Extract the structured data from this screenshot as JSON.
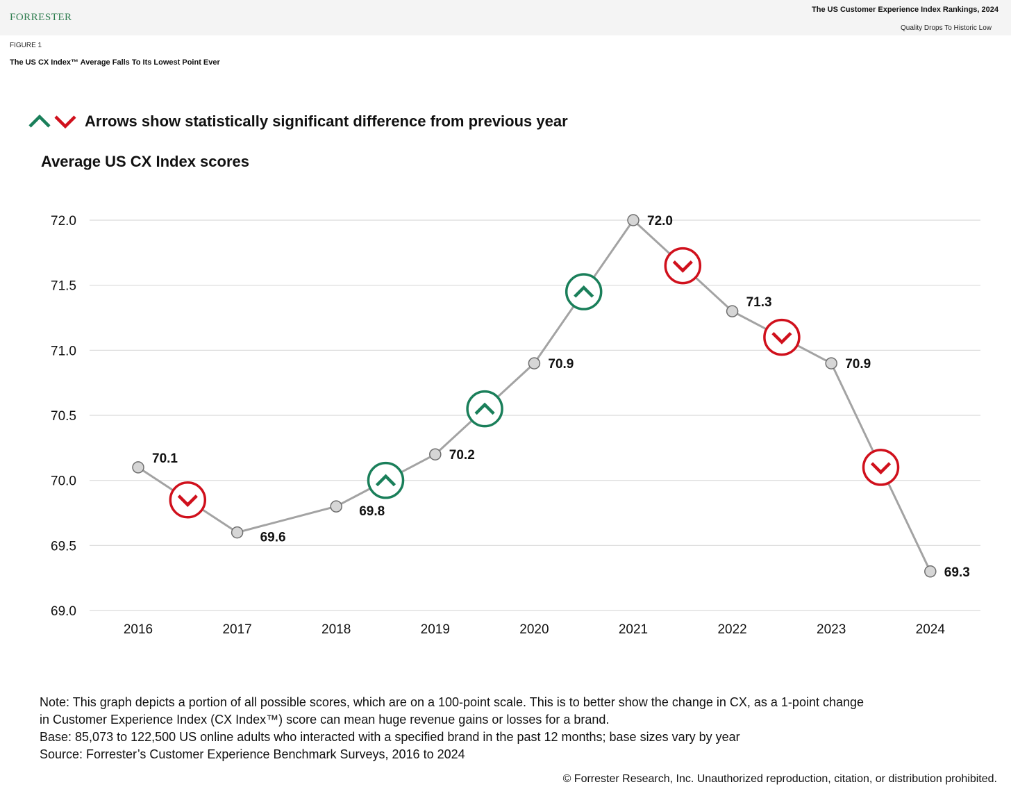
{
  "header": {
    "logo": "FORRESTER",
    "report_title": "The US Customer Experience Index Rankings, 2024",
    "report_subtitle": "Quality Drops To Historic Low"
  },
  "figure": {
    "number": "FIGURE 1",
    "title": "The US CX Index™ Average Falls To Its Lowest Point Ever"
  },
  "legend": {
    "text": "Arrows show statistically significant difference from previous year",
    "colors": {
      "up": "#1a7f5a",
      "down": "#d0101c"
    }
  },
  "chart_data": {
    "type": "line",
    "title": "Average US CX Index scores",
    "xlabel": "",
    "ylabel": "",
    "x": [
      "2016",
      "2017",
      "2018",
      "2019",
      "2020",
      "2021",
      "2022",
      "2023",
      "2024"
    ],
    "values": [
      70.1,
      69.6,
      69.8,
      70.2,
      70.9,
      72.0,
      71.3,
      70.9,
      69.3
    ],
    "ylim": [
      69.0,
      72.0
    ],
    "yticks": [
      "69.0",
      "69.5",
      "70.0",
      "70.5",
      "71.0",
      "71.5",
      "72.0"
    ],
    "grid": true,
    "line_color": "#a3a3a3",
    "marker_color": "#d6d6d6",
    "significance": [
      {
        "between": [
          "2016",
          "2017"
        ],
        "direction": "down"
      },
      {
        "between": [
          "2018",
          "2019"
        ],
        "direction": "up"
      },
      {
        "between": [
          "2019",
          "2020"
        ],
        "direction": "up"
      },
      {
        "between": [
          "2020",
          "2021"
        ],
        "direction": "up"
      },
      {
        "between": [
          "2021",
          "2022"
        ],
        "direction": "down"
      },
      {
        "between": [
          "2022",
          "2023"
        ],
        "direction": "down"
      },
      {
        "between": [
          "2023",
          "2024"
        ],
        "direction": "down"
      }
    ]
  },
  "notes": {
    "note_line1": "Note: This graph depicts a portion of all possible scores, which are on a 100-point scale. This is to better show the change in CX, as a 1-point change",
    "note_line2": "in Customer Experience Index (CX Index™) score can mean huge revenue gains or losses for a brand.",
    "base": "Base: 85,073 to 122,500 US online adults who interacted with a specified brand in the past 12 months; base sizes vary by year",
    "source": "Source: Forrester’s Customer Experience Benchmark Surveys, 2016 to 2024"
  },
  "copyright": "© Forrester Research, Inc. Unauthorized reproduction, citation, or distribution prohibited."
}
